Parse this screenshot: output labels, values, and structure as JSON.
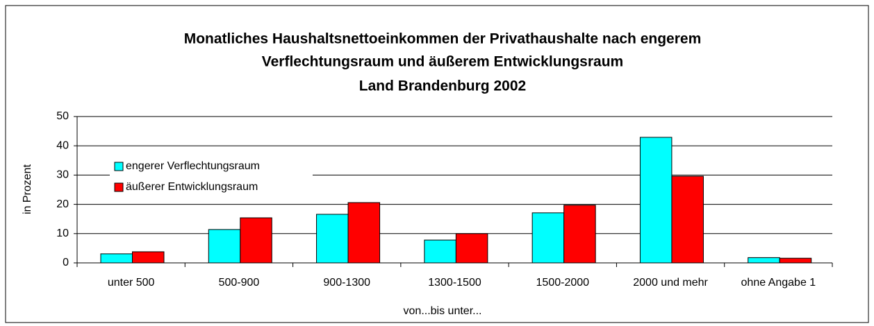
{
  "chart_data": {
    "type": "bar",
    "title_lines": [
      "Monatliches Haushaltsnettoeinkommen der Privathaushalte nach engerem",
      "Verflechtungsraum und äußerem Entwicklungsraum",
      "Land Brandenburg 2002"
    ],
    "x_label": "von...bis unter...",
    "y_label": "in Prozent",
    "categories": [
      "unter 500",
      "500-900",
      "900-1300",
      "1300-1500",
      "1500-2000",
      "2000 und mehr",
      "ohne Angabe 1"
    ],
    "series": [
      {
        "name": "engerer Verflechtungsraum",
        "color": "#00ffff",
        "values": [
          3.1,
          11.4,
          16.6,
          7.8,
          17.1,
          42.9,
          1.8
        ]
      },
      {
        "name": "äußerer Entwicklungsraum",
        "color": "#ff0000",
        "values": [
          3.8,
          15.4,
          20.6,
          10,
          19.7,
          29.6,
          1.6
        ]
      }
    ],
    "ylim": [
      0,
      50
    ],
    "yticks": [
      0,
      10,
      20,
      30,
      40,
      50
    ],
    "grid": true,
    "legend": "upper left"
  }
}
